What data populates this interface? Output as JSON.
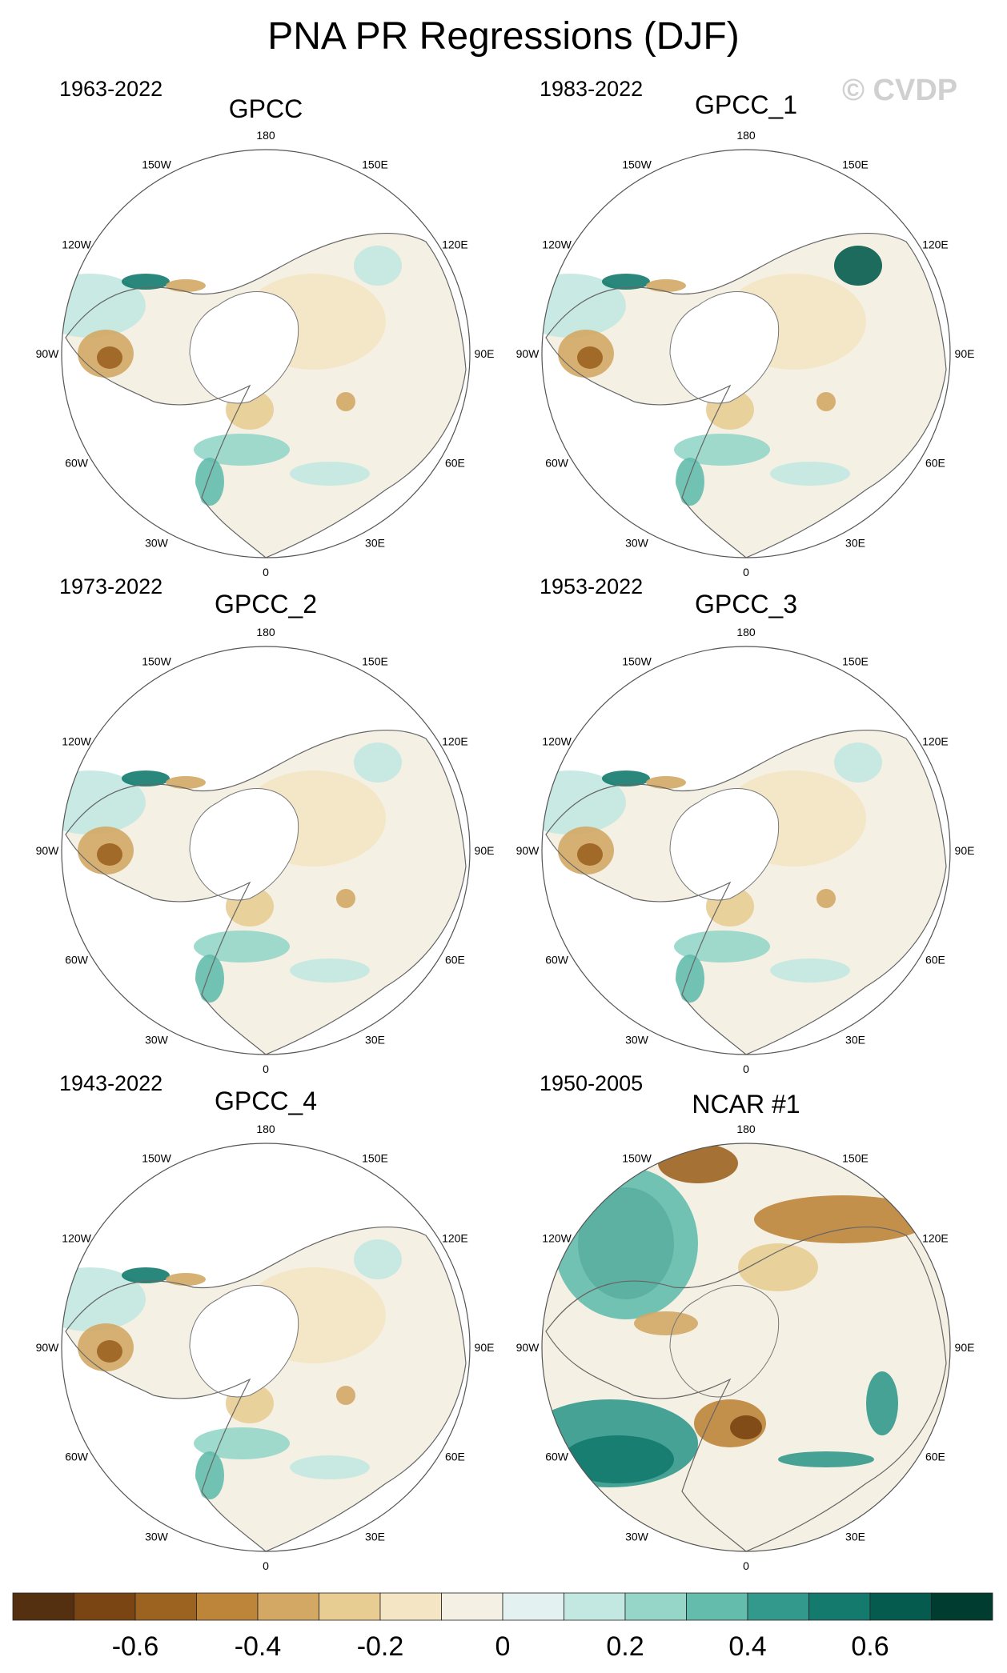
{
  "title": "PNA PR Regressions (DJF)",
  "watermark": "© CVDP",
  "longitude_labels": [
    "180",
    "150E",
    "120E",
    "90E",
    "60E",
    "30E",
    "0",
    "30W",
    "60W",
    "90W",
    "120W",
    "150W"
  ],
  "panels": [
    {
      "name": "GPCC",
      "period": "1963-2022"
    },
    {
      "name": "GPCC_1",
      "period": "1983-2022"
    },
    {
      "name": "GPCC_2",
      "period": "1973-2022"
    },
    {
      "name": "GPCC_3",
      "period": "1953-2022"
    },
    {
      "name": "GPCC_4",
      "period": "1943-2022"
    },
    {
      "name": "NCAR #1",
      "period": "1950-2005"
    }
  ],
  "colorbar": {
    "colors": [
      "#553010",
      "#7a4512",
      "#9c6320",
      "#bd853a",
      "#d3a865",
      "#e8cd93",
      "#f4e6c4",
      "#f5f0e4",
      "#e3f2f0",
      "#c3e8e1",
      "#95d6c9",
      "#64bcad",
      "#33998c",
      "#137a6d",
      "#055c4e",
      "#003c30"
    ],
    "tick_labels": [
      "-0.6",
      "-0.4",
      "-0.2",
      "0",
      "0.2",
      "0.4",
      "0.6"
    ]
  },
  "chart_data": {
    "type": "polar-stereographic map panels",
    "variable": "Precipitation regression onto PNA index, DJF",
    "contour_levels": [
      -0.7,
      -0.6,
      -0.5,
      -0.4,
      -0.3,
      -0.2,
      -0.1,
      0,
      0.1,
      0.2,
      0.3,
      0.4,
      0.5,
      0.6,
      0.7
    ],
    "tick_values": [
      -0.6,
      -0.4,
      -0.2,
      0,
      0.2,
      0.4,
      0.6
    ]
  }
}
